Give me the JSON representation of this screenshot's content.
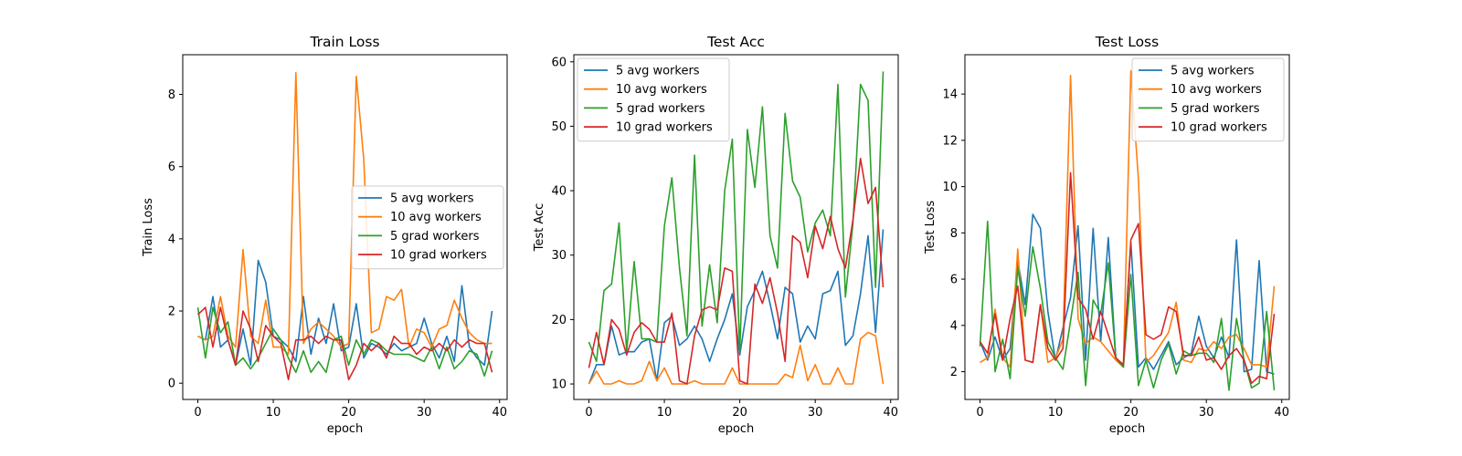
{
  "chart_data": [
    {
      "type": "line",
      "title": "Train Loss",
      "xlabel": "epoch",
      "ylabel": "Train Loss",
      "xlim": [
        -2,
        41
      ],
      "ylim": [
        -0.45,
        9.1
      ],
      "xticks": [
        0,
        10,
        20,
        30,
        40
      ],
      "yticks": [
        0,
        2,
        4,
        6,
        8
      ],
      "legend_loc": "center-right",
      "x": [
        0,
        1,
        2,
        3,
        4,
        5,
        6,
        7,
        8,
        9,
        10,
        11,
        12,
        13,
        14,
        15,
        16,
        17,
        18,
        19,
        20,
        21,
        22,
        23,
        24,
        25,
        26,
        27,
        28,
        29,
        30,
        31,
        32,
        33,
        34,
        35,
        36,
        37,
        38,
        39
      ],
      "series": [
        {
          "name": "5 avg workers",
          "color": "#1f77b4",
          "values": [
            1.3,
            1.2,
            2.4,
            1.0,
            1.2,
            0.5,
            1.5,
            0.5,
            3.4,
            2.8,
            1.3,
            1.2,
            1.0,
            0.6,
            2.4,
            0.8,
            1.8,
            1.1,
            2.2,
            0.9,
            1.0,
            2.2,
            0.7,
            1.1,
            1.0,
            0.8,
            1.1,
            0.9,
            1.0,
            1.1,
            1.8,
            1.1,
            0.7,
            1.3,
            0.6,
            2.7,
            1.0,
            0.7,
            0.5,
            2.0
          ]
        },
        {
          "name": "10 avg workers",
          "color": "#ff7f0e",
          "values": [
            1.3,
            1.2,
            1.3,
            2.4,
            1.3,
            1.0,
            3.7,
            1.3,
            1.1,
            2.3,
            1.0,
            1.0,
            0.8,
            8.6,
            1.1,
            1.5,
            1.7,
            1.5,
            1.3,
            1.0,
            1.1,
            8.5,
            6.2,
            1.4,
            1.5,
            2.4,
            2.3,
            2.6,
            1.0,
            1.5,
            1.4,
            1.0,
            1.5,
            1.6,
            2.3,
            1.8,
            1.4,
            1.2,
            1.1,
            1.1
          ]
        },
        {
          "name": "5 grad workers",
          "color": "#2ca02c",
          "values": [
            2.1,
            0.7,
            2.1,
            1.4,
            1.7,
            0.5,
            0.7,
            0.4,
            0.7,
            1.1,
            1.5,
            1.2,
            0.7,
            0.3,
            0.9,
            0.3,
            0.6,
            0.3,
            1.2,
            1.3,
            0.5,
            1.2,
            0.8,
            1.2,
            1.1,
            0.9,
            0.8,
            0.8,
            0.8,
            0.7,
            0.6,
            1.0,
            0.4,
            1.0,
            0.4,
            0.6,
            0.9,
            0.8,
            0.2,
            0.9
          ]
        },
        {
          "name": "10 grad workers",
          "color": "#d62728",
          "values": [
            1.9,
            2.1,
            1.0,
            2.1,
            1.2,
            0.5,
            2.0,
            1.5,
            0.6,
            1.6,
            1.3,
            1.1,
            0.1,
            1.2,
            1.2,
            1.3,
            1.1,
            1.3,
            1.2,
            1.2,
            0.1,
            0.5,
            1.1,
            0.9,
            1.1,
            0.7,
            1.3,
            1.1,
            1.1,
            0.8,
            1.0,
            0.9,
            1.1,
            0.9,
            1.2,
            1.0,
            1.2,
            1.1,
            1.1,
            0.3
          ]
        }
      ]
    },
    {
      "type": "line",
      "title": "Test Acc",
      "xlabel": "epoch",
      "ylabel": "Test Acc",
      "xlim": [
        -2,
        41
      ],
      "ylim": [
        7.6,
        61.1
      ],
      "xticks": [
        0,
        10,
        20,
        30,
        40
      ],
      "yticks": [
        10,
        20,
        30,
        40,
        50,
        60
      ],
      "legend_loc": "upper-left",
      "x": [
        0,
        1,
        2,
        3,
        4,
        5,
        6,
        7,
        8,
        9,
        10,
        11,
        12,
        13,
        14,
        15,
        16,
        17,
        18,
        19,
        20,
        21,
        22,
        23,
        24,
        25,
        26,
        27,
        28,
        29,
        30,
        31,
        32,
        33,
        34,
        35,
        36,
        37,
        38,
        39
      ],
      "series": [
        {
          "name": "5 avg workers",
          "color": "#1f77b4",
          "values": [
            10,
            13,
            13,
            19,
            14.5,
            15,
            15,
            16.5,
            17,
            10.5,
            19.5,
            20.5,
            16,
            17,
            19,
            17,
            13.5,
            17,
            20,
            24,
            14.5,
            22,
            24.5,
            27.5,
            22.5,
            17,
            25,
            24,
            16.5,
            19,
            17,
            24,
            24.5,
            27.5,
            16,
            17.5,
            24,
            33,
            18,
            34
          ]
        },
        {
          "name": "10 avg workers",
          "color": "#ff7f0e",
          "values": [
            10,
            12,
            10,
            10,
            10.5,
            10,
            10,
            10.5,
            13.5,
            10.5,
            12.5,
            10,
            10,
            10,
            10.5,
            10,
            10,
            10,
            10,
            12.5,
            10,
            10,
            10,
            10,
            10,
            10,
            11.5,
            11,
            16,
            10.5,
            13,
            10,
            10,
            12.5,
            10,
            10,
            17,
            18,
            17.5,
            10
          ]
        },
        {
          "name": "5 grad workers",
          "color": "#2ca02c",
          "values": [
            16.5,
            13.5,
            24.5,
            25.5,
            35,
            15,
            29,
            17,
            17,
            16.5,
            34.5,
            42,
            28,
            17.5,
            45.5,
            19,
            28.5,
            19.5,
            40,
            48,
            15,
            49.5,
            40.5,
            53,
            33,
            28,
            52,
            41.5,
            39,
            30.5,
            35,
            37,
            33,
            56.5,
            23.5,
            35,
            56.5,
            54,
            25,
            58.5
          ]
        },
        {
          "name": "10 grad workers",
          "color": "#d62728",
          "values": [
            12.5,
            18,
            13,
            20,
            18.5,
            14.5,
            18,
            19.5,
            18.5,
            16.5,
            16.5,
            21,
            10.5,
            10,
            17.5,
            21.5,
            22,
            21.5,
            28,
            27.5,
            10.5,
            10,
            25.5,
            22.5,
            26.5,
            21,
            13.5,
            33,
            32,
            26.5,
            34.5,
            31,
            36,
            31,
            28,
            35.5,
            45,
            38,
            40.5,
            25
          ]
        }
      ]
    },
    {
      "type": "line",
      "title": "Test Loss",
      "xlabel": "epoch",
      "ylabel": "Test Loss",
      "xlim": [
        -2,
        41
      ],
      "ylim": [
        0.8,
        15.7
      ],
      "xticks": [
        0,
        10,
        20,
        30,
        40
      ],
      "yticks": [
        2,
        4,
        6,
        8,
        10,
        12,
        14
      ],
      "legend_loc": "upper-right",
      "x": [
        0,
        1,
        2,
        3,
        4,
        5,
        6,
        7,
        8,
        9,
        10,
        11,
        12,
        13,
        14,
        15,
        16,
        17,
        18,
        19,
        20,
        21,
        22,
        23,
        24,
        25,
        26,
        27,
        28,
        29,
        30,
        31,
        32,
        33,
        34,
        35,
        36,
        37,
        38,
        39
      ],
      "series": [
        {
          "name": "5 avg workers",
          "color": "#1f77b4",
          "values": [
            3.3,
            2.5,
            3.5,
            2.5,
            3.0,
            6.8,
            4.9,
            8.8,
            8.2,
            4.6,
            2.5,
            3.9,
            5.2,
            8.3,
            2.5,
            8.2,
            3.3,
            7.8,
            2.6,
            2.2,
            7.6,
            2.2,
            2.6,
            2.1,
            2.7,
            3.3,
            2.3,
            2.6,
            2.8,
            4.4,
            3.1,
            2.6,
            3.5,
            2.6,
            7.7,
            2.0,
            2.1,
            6.8,
            2.0,
            1.9
          ]
        },
        {
          "name": "10 avg workers",
          "color": "#ff7f0e",
          "values": [
            2.4,
            2.6,
            4.7,
            2.6,
            2.2,
            7.3,
            2.5,
            2.4,
            4.9,
            2.4,
            2.6,
            3.4,
            14.8,
            4.3,
            3.2,
            3.5,
            3.3,
            2.9,
            2.5,
            2.2,
            15.0,
            10.3,
            2.4,
            2.7,
            3.2,
            3.7,
            5.0,
            2.5,
            2.4,
            3.0,
            2.9,
            3.3,
            3.0,
            3.5,
            3.6,
            3.0,
            2.3,
            2.3,
            2.2,
            5.7
          ]
        },
        {
          "name": "5 grad workers",
          "color": "#2ca02c",
          "values": [
            3.1,
            8.5,
            2.0,
            3.4,
            1.7,
            6.5,
            4.4,
            7.4,
            5.6,
            3.3,
            2.6,
            2.1,
            4.2,
            6.3,
            1.4,
            5.1,
            4.5,
            6.7,
            2.6,
            2.2,
            6.2,
            1.4,
            2.5,
            1.3,
            2.5,
            3.2,
            1.9,
            2.9,
            2.7,
            2.8,
            2.8,
            2.4,
            4.3,
            1.2,
            4.3,
            2.5,
            1.3,
            1.5,
            4.6,
            1.2
          ]
        },
        {
          "name": "10 grad workers",
          "color": "#d62728",
          "values": [
            3.3,
            2.8,
            4.5,
            2.5,
            4.3,
            5.7,
            2.5,
            2.4,
            4.9,
            3.0,
            2.5,
            3.0,
            10.6,
            5.2,
            4.7,
            3.4,
            4.6,
            3.6,
            2.6,
            2.3,
            7.7,
            8.4,
            3.6,
            3.4,
            3.6,
            4.8,
            4.6,
            2.7,
            2.7,
            3.5,
            2.5,
            2.6,
            2.1,
            2.7,
            3.0,
            2.5,
            1.5,
            1.8,
            1.7,
            4.5
          ]
        }
      ]
    }
  ]
}
